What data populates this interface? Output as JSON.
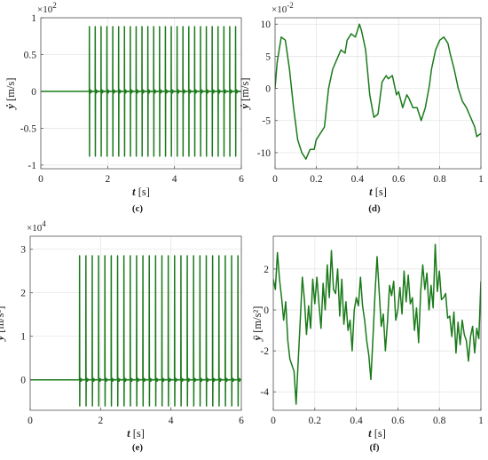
{
  "chart_data": [
    {
      "id": "c",
      "type": "line",
      "panel_label": "(c)",
      "xlabel_var": "t",
      "xlabel_unit": "[s]",
      "ylabel_var": "ẏ",
      "ylabel_unit": "[m/s]",
      "exponent_base": "×10",
      "exponent_power": "2",
      "xlim": [
        0,
        6
      ],
      "ylim": [
        -1.05,
        1.0
      ],
      "xticks": [
        0,
        2,
        4,
        6
      ],
      "xtick_labels": [
        "0",
        "2",
        "4",
        "6"
      ],
      "yticks": [
        -1,
        -0.5,
        0,
        0.5,
        1
      ],
      "ytick_labels": [
        "-1",
        "-0.5",
        "0",
        "0.5",
        "1"
      ],
      "grid": true,
      "color": "#1a7a1a",
      "signal": {
        "kind": "pulses",
        "onset": 1.45,
        "count": 26,
        "period": 0.175,
        "width": 0.01,
        "pos": 0.88,
        "neg": -0.88,
        "ring_amp": 0.05
      }
    },
    {
      "id": "d",
      "type": "line",
      "panel_label": "(d)",
      "xlabel_var": "t",
      "xlabel_unit": "[s]",
      "ylabel_var": "ẏ",
      "ylabel_unit": "[m/s]",
      "exponent_base": "×10",
      "exponent_power": "-2",
      "xlim": [
        0,
        1
      ],
      "ylim": [
        -12.5,
        11
      ],
      "xticks": [
        0,
        0.2,
        0.4,
        0.6,
        0.8,
        1
      ],
      "xtick_labels": [
        "0",
        "0.2",
        "0.4",
        "0.6",
        "0.8",
        "1"
      ],
      "yticks": [
        -10,
        -5,
        0,
        5,
        10
      ],
      "ytick_labels": [
        "-10",
        "-5",
        "0",
        "5",
        "10"
      ],
      "grid": true,
      "color": "#1a7a1a",
      "signal": {
        "kind": "points",
        "x": [
          0,
          0.01,
          0.03,
          0.05,
          0.07,
          0.09,
          0.11,
          0.13,
          0.15,
          0.17,
          0.19,
          0.2,
          0.22,
          0.24,
          0.26,
          0.28,
          0.3,
          0.32,
          0.34,
          0.35,
          0.37,
          0.39,
          0.41,
          0.42,
          0.44,
          0.46,
          0.48,
          0.5,
          0.52,
          0.54,
          0.55,
          0.57,
          0.59,
          0.6,
          0.62,
          0.64,
          0.65,
          0.67,
          0.69,
          0.71,
          0.73,
          0.75,
          0.76,
          0.78,
          0.8,
          0.82,
          0.84,
          0.85,
          0.87,
          0.89,
          0.91,
          0.93,
          0.95,
          0.97,
          0.98,
          1.0
        ],
        "y": [
          0,
          4,
          8,
          7.5,
          3,
          -3,
          -8,
          -10,
          -11,
          -9.5,
          -9.5,
          -8,
          -7,
          -6,
          0,
          3,
          4.5,
          6,
          5.5,
          7.5,
          8.5,
          8,
          10,
          9,
          6,
          -1,
          -4.5,
          -4,
          1,
          2,
          1.5,
          2,
          -1,
          -0.5,
          -3,
          -1,
          -1.5,
          -3,
          -3,
          -5,
          -3,
          0.5,
          3,
          6,
          7.5,
          8,
          7,
          5.5,
          3,
          0,
          -2,
          -3,
          -4.5,
          -6,
          -7.5,
          -7
        ]
      }
    },
    {
      "id": "e",
      "type": "line",
      "panel_label": "(e)",
      "xlabel_var": "t",
      "xlabel_unit": "[s]",
      "ylabel_var": "ÿ",
      "ylabel_unit": "[m/s²]",
      "exponent_base": "×10",
      "exponent_power": "4",
      "xlim": [
        0,
        6
      ],
      "ylim": [
        -0.7,
        3.3
      ],
      "xticks": [
        0,
        2,
        4,
        6
      ],
      "xtick_labels": [
        "0",
        "2",
        "4",
        "6"
      ],
      "yticks": [
        0,
        1,
        2,
        3
      ],
      "ytick_labels": [
        "0",
        "1",
        "2",
        "3"
      ],
      "grid": true,
      "color": "#1a7a1a",
      "signal": {
        "kind": "pulses",
        "onset": 1.4,
        "count": 26,
        "period": 0.18,
        "width": 0.012,
        "pos": 2.85,
        "neg": -0.6,
        "ring_amp": 0.08
      }
    },
    {
      "id": "f",
      "type": "line",
      "panel_label": "(f)",
      "xlabel_var": "t",
      "xlabel_unit": "[s]",
      "ylabel_var": "ÿ",
      "ylabel_unit": "[m/s²]",
      "exponent_base": "",
      "exponent_power": "",
      "xlim": [
        0,
        1
      ],
      "ylim": [
        -4.9,
        3.6
      ],
      "xticks": [
        0,
        0.2,
        0.4,
        0.6,
        0.8,
        1
      ],
      "xtick_labels": [
        "0",
        "0.2",
        "0.4",
        "0.6",
        "0.8",
        "1"
      ],
      "yticks": [
        -4,
        -2,
        0,
        2
      ],
      "ytick_labels": [
        "-4",
        "-2",
        "0",
        "2"
      ],
      "grid": true,
      "color": "#1a7a1a",
      "signal": {
        "kind": "points",
        "x": [
          0,
          0.01,
          0.02,
          0.03,
          0.04,
          0.05,
          0.06,
          0.07,
          0.08,
          0.09,
          0.1,
          0.11,
          0.12,
          0.13,
          0.14,
          0.15,
          0.16,
          0.17,
          0.18,
          0.19,
          0.2,
          0.21,
          0.22,
          0.23,
          0.24,
          0.25,
          0.26,
          0.27,
          0.28,
          0.29,
          0.3,
          0.31,
          0.32,
          0.33,
          0.34,
          0.35,
          0.36,
          0.37,
          0.38,
          0.39,
          0.4,
          0.41,
          0.42,
          0.43,
          0.44,
          0.45,
          0.46,
          0.47,
          0.48,
          0.49,
          0.5,
          0.51,
          0.52,
          0.53,
          0.54,
          0.55,
          0.56,
          0.57,
          0.58,
          0.59,
          0.6,
          0.61,
          0.62,
          0.63,
          0.64,
          0.65,
          0.66,
          0.67,
          0.68,
          0.69,
          0.7,
          0.71,
          0.72,
          0.73,
          0.74,
          0.75,
          0.76,
          0.77,
          0.78,
          0.79,
          0.8,
          0.81,
          0.82,
          0.83,
          0.84,
          0.85,
          0.86,
          0.87,
          0.88,
          0.89,
          0.9,
          0.91,
          0.92,
          0.93,
          0.94,
          0.95,
          0.96,
          0.97,
          0.98,
          0.99,
          1.0
        ],
        "y": [
          1.5,
          1.0,
          2.8,
          1.5,
          0.6,
          -0.5,
          0.4,
          -1.5,
          -2.4,
          -2.7,
          -3.0,
          -4.6,
          -2.5,
          -0.5,
          1.6,
          0.5,
          -1.2,
          0.2,
          -0.9,
          1.5,
          0.3,
          1.6,
          0.3,
          -0.9,
          1.3,
          0.0,
          2.2,
          0.6,
          2.9,
          1.0,
          0.8,
          2.0,
          -0.3,
          1.5,
          -0.7,
          0.4,
          -1.0,
          -0.5,
          -2.0,
          0.0,
          0.6,
          0.2,
          1.6,
          0.2,
          -0.5,
          -1.5,
          -2.2,
          -3.4,
          -1.4,
          0.8,
          2.6,
          0.9,
          -0.8,
          -0.2,
          -2.0,
          -0.6,
          1.2,
          0.7,
          1.4,
          -0.5,
          0.0,
          1.1,
          -0.2,
          1.9,
          0.4,
          1.7,
          0.3,
          0.6,
          -1.0,
          0.1,
          -1.6,
          0.9,
          2.2,
          1.0,
          1.8,
          0.0,
          1.2,
          0.1,
          3.2,
          0.9,
          1.9,
          0.5,
          0.6,
          0.8,
          -0.4,
          -0.3,
          -1.3,
          -0.1,
          -2.1,
          -0.6,
          -1.7,
          -0.5,
          -1.2,
          -1.5,
          -2.5,
          -1.3,
          -0.8,
          -2.1,
          -0.9,
          -1.4,
          1.4
        ]
      }
    }
  ]
}
